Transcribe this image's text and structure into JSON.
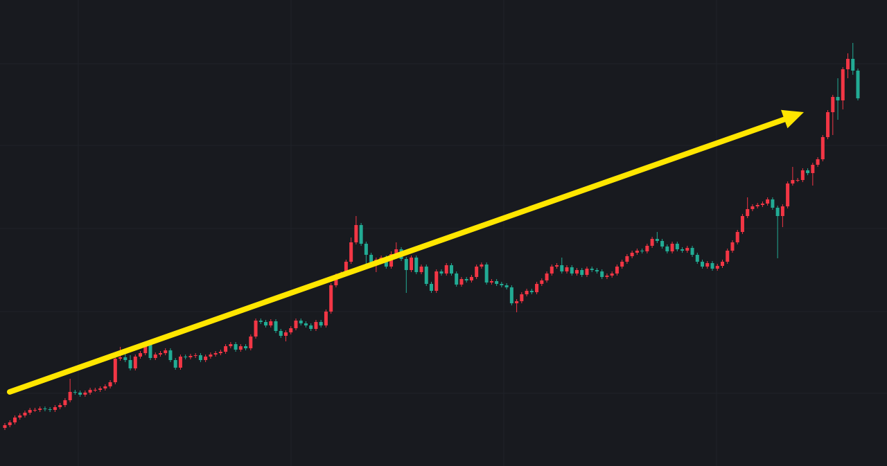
{
  "chart_data": {
    "type": "candlestick",
    "up_color": "#f23645",
    "down_color": "#22ab94",
    "ylim": [
      0,
      673
    ],
    "ohlc": [
      [
        55,
        62,
        52,
        59
      ],
      [
        59,
        66,
        56,
        63
      ],
      [
        63,
        73,
        60,
        70
      ],
      [
        70,
        76,
        67,
        73
      ],
      [
        73,
        80,
        70,
        77
      ],
      [
        77,
        84,
        74,
        81
      ],
      [
        81,
        84,
        78,
        81
      ],
      [
        81,
        86,
        78,
        83
      ],
      [
        83,
        86,
        79,
        82
      ],
      [
        82,
        85,
        78,
        81
      ],
      [
        81,
        88,
        78,
        85
      ],
      [
        85,
        91,
        82,
        88
      ],
      [
        88,
        98,
        85,
        95
      ],
      [
        95,
        126,
        92,
        107
      ],
      [
        107,
        110,
        103,
        106
      ],
      [
        106,
        109,
        100,
        103
      ],
      [
        103,
        109,
        100,
        106
      ],
      [
        106,
        113,
        103,
        110
      ],
      [
        110,
        113,
        107,
        110
      ],
      [
        110,
        115,
        107,
        112
      ],
      [
        112,
        118,
        109,
        115
      ],
      [
        115,
        124,
        112,
        121
      ],
      [
        121,
        158,
        118,
        155
      ],
      [
        155,
        172,
        152,
        157
      ],
      [
        157,
        165,
        150,
        153
      ],
      [
        153,
        160,
        138,
        141
      ],
      [
        141,
        161,
        138,
        158
      ],
      [
        158,
        166,
        155,
        163
      ],
      [
        163,
        180,
        160,
        176
      ],
      [
        176,
        179,
        153,
        156
      ],
      [
        156,
        164,
        153,
        161
      ],
      [
        161,
        166,
        158,
        163
      ],
      [
        163,
        170,
        160,
        167
      ],
      [
        167,
        170,
        150,
        153
      ],
      [
        153,
        156,
        139,
        142
      ],
      [
        142,
        161,
        139,
        158
      ],
      [
        158,
        161,
        154,
        157
      ],
      [
        157,
        162,
        154,
        159
      ],
      [
        159,
        163,
        156,
        160
      ],
      [
        160,
        163,
        150,
        153
      ],
      [
        153,
        161,
        150,
        158
      ],
      [
        158,
        164,
        155,
        161
      ],
      [
        161,
        166,
        158,
        163
      ],
      [
        163,
        168,
        160,
        165
      ],
      [
        165,
        176,
        162,
        173
      ],
      [
        173,
        179,
        170,
        176
      ],
      [
        176,
        179,
        165,
        168
      ],
      [
        168,
        176,
        165,
        173
      ],
      [
        173,
        176,
        167,
        170
      ],
      [
        170,
        190,
        167,
        187
      ],
      [
        187,
        213,
        184,
        210
      ],
      [
        210,
        213,
        205,
        208
      ],
      [
        208,
        211,
        200,
        203
      ],
      [
        203,
        212,
        200,
        209
      ],
      [
        209,
        212,
        192,
        195
      ],
      [
        195,
        198,
        185,
        188
      ],
      [
        188,
        196,
        180,
        193
      ],
      [
        193,
        202,
        190,
        199
      ],
      [
        199,
        213,
        196,
        210
      ],
      [
        210,
        213,
        203,
        206
      ],
      [
        206,
        209,
        200,
        203
      ],
      [
        203,
        206,
        195,
        198
      ],
      [
        198,
        211,
        195,
        208
      ],
      [
        208,
        211,
        200,
        203
      ],
      [
        203,
        226,
        200,
        223
      ],
      [
        223,
        264,
        220,
        261
      ],
      [
        261,
        278,
        258,
        275
      ],
      [
        275,
        281,
        272,
        278
      ],
      [
        278,
        298,
        275,
        295
      ],
      [
        295,
        330,
        292,
        323
      ],
      [
        323,
        361,
        320,
        348
      ],
      [
        348,
        351,
        318,
        321
      ],
      [
        321,
        324,
        285,
        305
      ],
      [
        305,
        308,
        287,
        290
      ],
      [
        290,
        301,
        280,
        298
      ],
      [
        298,
        304,
        295,
        301
      ],
      [
        301,
        304,
        285,
        288
      ],
      [
        288,
        310,
        285,
        306
      ],
      [
        306,
        323,
        303,
        313
      ],
      [
        313,
        316,
        296,
        299
      ],
      [
        299,
        302,
        250,
        283
      ],
      [
        283,
        304,
        280,
        301
      ],
      [
        301,
        304,
        277,
        280
      ],
      [
        280,
        291,
        277,
        288
      ],
      [
        288,
        291,
        260,
        263
      ],
      [
        263,
        266,
        250,
        253
      ],
      [
        253,
        284,
        250,
        281
      ],
      [
        281,
        284,
        275,
        278
      ],
      [
        278,
        293,
        275,
        290
      ],
      [
        290,
        293,
        275,
        278
      ],
      [
        278,
        281,
        259,
        262
      ],
      [
        262,
        273,
        259,
        270
      ],
      [
        270,
        273,
        265,
        268
      ],
      [
        268,
        276,
        265,
        273
      ],
      [
        273,
        291,
        270,
        288
      ],
      [
        288,
        294,
        285,
        291
      ],
      [
        291,
        294,
        262,
        265
      ],
      [
        265,
        270,
        262,
        267
      ],
      [
        267,
        270,
        260,
        263
      ],
      [
        263,
        266,
        258,
        261
      ],
      [
        261,
        264,
        255,
        258
      ],
      [
        258,
        261,
        232,
        235
      ],
      [
        235,
        241,
        222,
        238
      ],
      [
        238,
        251,
        235,
        248
      ],
      [
        248,
        256,
        245,
        253
      ],
      [
        253,
        256,
        248,
        251
      ],
      [
        251,
        266,
        248,
        263
      ],
      [
        263,
        271,
        260,
        268
      ],
      [
        268,
        281,
        265,
        278
      ],
      [
        278,
        291,
        275,
        288
      ],
      [
        288,
        293,
        285,
        290
      ],
      [
        290,
        301,
        278,
        281
      ],
      [
        281,
        290,
        278,
        287
      ],
      [
        287,
        290,
        275,
        278
      ],
      [
        278,
        286,
        275,
        283
      ],
      [
        283,
        286,
        273,
        276
      ],
      [
        276,
        288,
        273,
        285
      ],
      [
        285,
        288,
        280,
        283
      ],
      [
        283,
        286,
        278,
        281
      ],
      [
        281,
        284,
        270,
        273
      ],
      [
        273,
        278,
        270,
        275
      ],
      [
        275,
        281,
        272,
        278
      ],
      [
        278,
        291,
        275,
        288
      ],
      [
        288,
        298,
        285,
        295
      ],
      [
        295,
        306,
        292,
        303
      ],
      [
        303,
        311,
        300,
        308
      ],
      [
        308,
        314,
        305,
        311
      ],
      [
        311,
        314,
        307,
        310
      ],
      [
        310,
        321,
        307,
        318
      ],
      [
        318,
        331,
        315,
        328
      ],
      [
        328,
        338,
        322,
        325
      ],
      [
        325,
        328,
        314,
        317
      ],
      [
        317,
        320,
        307,
        310
      ],
      [
        310,
        324,
        307,
        321
      ],
      [
        321,
        324,
        310,
        313
      ],
      [
        313,
        316,
        308,
        311
      ],
      [
        311,
        318,
        308,
        315
      ],
      [
        315,
        318,
        302,
        305
      ],
      [
        305,
        308,
        292,
        295
      ],
      [
        295,
        298,
        285,
        288
      ],
      [
        288,
        296,
        285,
        293
      ],
      [
        293,
        296,
        282,
        285
      ],
      [
        285,
        292,
        282,
        289
      ],
      [
        289,
        298,
        286,
        295
      ],
      [
        295,
        314,
        292,
        311
      ],
      [
        311,
        326,
        308,
        323
      ],
      [
        323,
        341,
        320,
        338
      ],
      [
        338,
        364,
        335,
        361
      ],
      [
        361,
        388,
        358,
        371
      ],
      [
        371,
        378,
        368,
        375
      ],
      [
        375,
        380,
        372,
        377
      ],
      [
        377,
        382,
        374,
        379
      ],
      [
        379,
        388,
        376,
        385
      ],
      [
        385,
        388,
        370,
        373
      ],
      [
        373,
        376,
        300,
        361
      ],
      [
        361,
        378,
        345,
        375
      ],
      [
        375,
        411,
        372,
        408
      ],
      [
        408,
        432,
        405,
        413
      ],
      [
        413,
        416,
        410,
        413
      ],
      [
        413,
        430,
        410,
        427
      ],
      [
        427,
        430,
        420,
        423
      ],
      [
        423,
        438,
        405,
        435
      ],
      [
        435,
        446,
        432,
        443
      ],
      [
        443,
        478,
        440,
        475
      ],
      [
        475,
        514,
        472,
        511
      ],
      [
        511,
        536,
        478,
        533
      ],
      [
        533,
        560,
        500,
        528
      ],
      [
        528,
        576,
        515,
        573
      ],
      [
        573,
        596,
        560,
        588
      ],
      [
        588,
        611,
        565,
        571
      ],
      [
        571,
        574,
        528,
        531
      ]
    ]
  }
}
